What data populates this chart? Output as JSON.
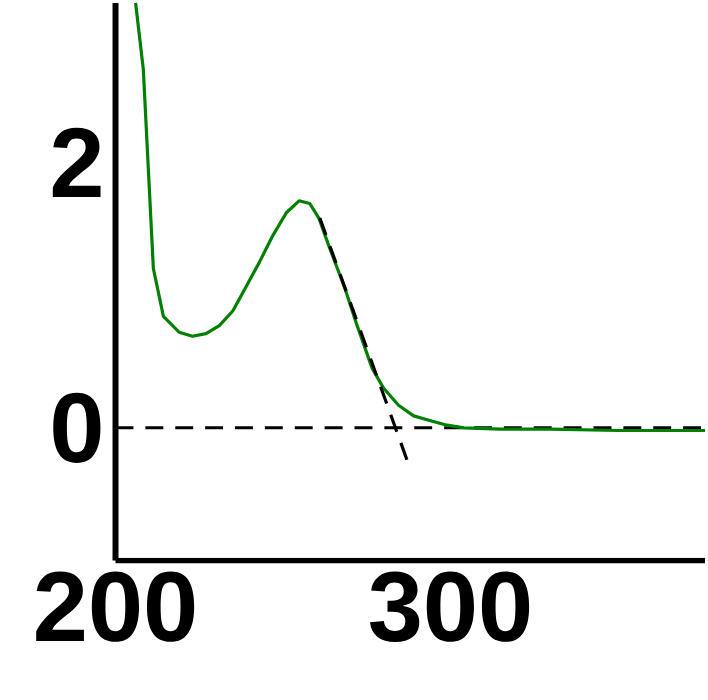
{
  "chart_data": {
    "type": "line",
    "xlim": [
      200,
      376
    ],
    "ylim": [
      -1,
      3.2
    ],
    "xticks": [
      200,
      300
    ],
    "yticks": [
      0,
      2
    ],
    "series": [
      {
        "color": "#008000",
        "line_style": "solid",
        "x": [
          206,
          208.3,
          211.3,
          214.3,
          219,
          223,
          227,
          231,
          235,
          238.7,
          243,
          247,
          251,
          254.8,
          258,
          260.7,
          264,
          268.5,
          272,
          276.6,
          280,
          284.5,
          289,
          294.6,
          299,
          304,
          315,
          330,
          350,
          376
        ],
        "values": [
          3.2,
          2.7,
          1.2,
          0.84,
          0.72,
          0.69,
          0.71,
          0.77,
          0.88,
          1.05,
          1.25,
          1.45,
          1.62,
          1.71,
          1.69,
          1.58,
          1.35,
          1.05,
          0.78,
          0.45,
          0.3,
          0.17,
          0.09,
          0.05,
          0.02,
          0.0,
          -0.01,
          -0.01,
          -0.02,
          -0.02
        ]
      },
      {
        "color": "#000000",
        "line_style": "dashed",
        "x": [
          261,
          287
        ],
        "values": [
          1.58,
          -0.24
        ]
      }
    ],
    "ref_lines": [
      {
        "axis": "y",
        "value": 0,
        "color": "#000000",
        "line_style": "dashed"
      }
    ]
  }
}
